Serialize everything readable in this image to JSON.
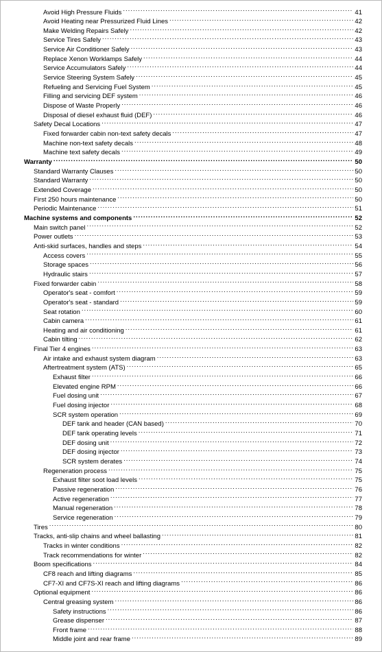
{
  "toc": [
    {
      "indent": 3,
      "title": "Avoid High Pressure Fluids",
      "page": "41",
      "bold": false
    },
    {
      "indent": 3,
      "title": "Avoid Heating near Pressurized Fluid Lines",
      "page": "42",
      "bold": false
    },
    {
      "indent": 3,
      "title": "Make Welding Repairs Safely",
      "page": "42",
      "bold": false
    },
    {
      "indent": 3,
      "title": "Service Tires Safely",
      "page": "43",
      "bold": false
    },
    {
      "indent": 3,
      "title": "Service Air Conditioner Safely",
      "page": "43",
      "bold": false
    },
    {
      "indent": 3,
      "title": "Replace Xenon Worklamps Safely",
      "page": "44",
      "bold": false
    },
    {
      "indent": 3,
      "title": "Service Accumulators Safely",
      "page": "44",
      "bold": false
    },
    {
      "indent": 3,
      "title": "Service Steering System Safely",
      "page": "45",
      "bold": false
    },
    {
      "indent": 3,
      "title": "Refueling and Servicing Fuel System",
      "page": "45",
      "bold": false
    },
    {
      "indent": 3,
      "title": "Filling and servicing DEF system",
      "page": "46",
      "bold": false
    },
    {
      "indent": 3,
      "title": "Dispose of Waste Properly",
      "page": "46",
      "bold": false
    },
    {
      "indent": 3,
      "title": "Disposal of diesel exhaust fluid (DEF)",
      "page": "46",
      "bold": false
    },
    {
      "indent": 2,
      "title": "Safety Decal Locations",
      "page": "47",
      "bold": false
    },
    {
      "indent": 3,
      "title": "Fixed forwarder cabin non-text safety decals",
      "page": "47",
      "bold": false
    },
    {
      "indent": 3,
      "title": "Machine non-text safety decals",
      "page": "48",
      "bold": false
    },
    {
      "indent": 3,
      "title": "Machine text safety decals",
      "page": "49",
      "bold": false
    },
    {
      "indent": 1,
      "title": "Warranty",
      "page": "50",
      "bold": true
    },
    {
      "indent": 2,
      "title": "Standard Warranty Clauses",
      "page": "50",
      "bold": false
    },
    {
      "indent": 2,
      "title": "Standard Warranty",
      "page": "50",
      "bold": false
    },
    {
      "indent": 2,
      "title": "Extended Coverage",
      "page": "50",
      "bold": false
    },
    {
      "indent": 2,
      "title": "First 250 hours maintenance",
      "page": "50",
      "bold": false
    },
    {
      "indent": 2,
      "title": "Periodic Maintenance",
      "page": "51",
      "bold": false
    },
    {
      "indent": 1,
      "title": "Machine systems and components",
      "page": "52",
      "bold": true
    },
    {
      "indent": 2,
      "title": "Main switch panel",
      "page": "52",
      "bold": false
    },
    {
      "indent": 2,
      "title": "Power outlets",
      "page": "53",
      "bold": false
    },
    {
      "indent": 2,
      "title": "Anti-skid surfaces, handles and steps",
      "page": "54",
      "bold": false
    },
    {
      "indent": 3,
      "title": "Access covers",
      "page": "55",
      "bold": false
    },
    {
      "indent": 3,
      "title": "Storage spaces",
      "page": "56",
      "bold": false
    },
    {
      "indent": 3,
      "title": "Hydraulic stairs",
      "page": "57",
      "bold": false
    },
    {
      "indent": 2,
      "title": "Fixed forwarder cabin",
      "page": "58",
      "bold": false
    },
    {
      "indent": 3,
      "title": "Operator's seat - comfort",
      "page": "59",
      "bold": false
    },
    {
      "indent": 3,
      "title": "Operator's seat - standard",
      "page": "59",
      "bold": false
    },
    {
      "indent": 3,
      "title": "Seat rotation",
      "page": "60",
      "bold": false
    },
    {
      "indent": 3,
      "title": "Cabin camera",
      "page": "61",
      "bold": false
    },
    {
      "indent": 3,
      "title": "Heating and air conditioning",
      "page": "61",
      "bold": false
    },
    {
      "indent": 3,
      "title": "Cabin tilting",
      "page": "62",
      "bold": false
    },
    {
      "indent": 2,
      "title": "Final Tier 4 engines",
      "page": "63",
      "bold": false
    },
    {
      "indent": 3,
      "title": "Air intake and exhaust system diagram",
      "page": "63",
      "bold": false
    },
    {
      "indent": 3,
      "title": "Aftertreatment system (ATS)",
      "page": "65",
      "bold": false
    },
    {
      "indent": 4,
      "title": "Exhaust filter",
      "page": "66",
      "bold": false
    },
    {
      "indent": 4,
      "title": "Elevated engine RPM",
      "page": "66",
      "bold": false
    },
    {
      "indent": 4,
      "title": "Fuel dosing unit",
      "page": "67",
      "bold": false
    },
    {
      "indent": 4,
      "title": "Fuel dosing injector",
      "page": "68",
      "bold": false
    },
    {
      "indent": 4,
      "title": "SCR system operation",
      "page": "69",
      "bold": false
    },
    {
      "indent": 5,
      "title": "DEF tank and header (CAN based)",
      "page": "70",
      "bold": false
    },
    {
      "indent": 5,
      "title": "DEF tank operating levels",
      "page": "71",
      "bold": false
    },
    {
      "indent": 5,
      "title": "DEF dosing unit",
      "page": "72",
      "bold": false
    },
    {
      "indent": 5,
      "title": "DEF dosing injector",
      "page": "73",
      "bold": false
    },
    {
      "indent": 5,
      "title": "SCR system derates",
      "page": "74",
      "bold": false
    },
    {
      "indent": 3,
      "title": "Regeneration process",
      "page": "75",
      "bold": false
    },
    {
      "indent": 4,
      "title": "Exhaust filter soot load levels",
      "page": "75",
      "bold": false
    },
    {
      "indent": 4,
      "title": "Passive regeneration",
      "page": "76",
      "bold": false
    },
    {
      "indent": 4,
      "title": "Active regeneration",
      "page": "77",
      "bold": false
    },
    {
      "indent": 4,
      "title": "Manual regeneration",
      "page": "78",
      "bold": false
    },
    {
      "indent": 4,
      "title": "Service regeneration",
      "page": "79",
      "bold": false
    },
    {
      "indent": 2,
      "title": "Tires",
      "page": "80",
      "bold": false
    },
    {
      "indent": 2,
      "title": "Tracks, anti-slip chains and wheel ballasting",
      "page": "81",
      "bold": false
    },
    {
      "indent": 3,
      "title": "Tracks in winter conditions",
      "page": "82",
      "bold": false
    },
    {
      "indent": 3,
      "title": "Track recommendations for winter",
      "page": "82",
      "bold": false
    },
    {
      "indent": 2,
      "title": "Boom specifications",
      "page": "84",
      "bold": false
    },
    {
      "indent": 3,
      "title": "CF8 reach and lifting diagrams",
      "page": "85",
      "bold": false
    },
    {
      "indent": 3,
      "title": "CF7-XI and CF7S-XI reach and lifting diagrams",
      "page": "86",
      "bold": false
    },
    {
      "indent": 2,
      "title": "Optional equipment",
      "page": "86",
      "bold": false
    },
    {
      "indent": 3,
      "title": "Central greasing system",
      "page": "86",
      "bold": false
    },
    {
      "indent": 4,
      "title": "Safety instructions",
      "page": "86",
      "bold": false
    },
    {
      "indent": 4,
      "title": "Grease dispenser",
      "page": "87",
      "bold": false
    },
    {
      "indent": 4,
      "title": "Front frame",
      "page": "88",
      "bold": false
    },
    {
      "indent": 4,
      "title": "Middle joint and rear frame",
      "page": "89",
      "bold": false
    }
  ]
}
